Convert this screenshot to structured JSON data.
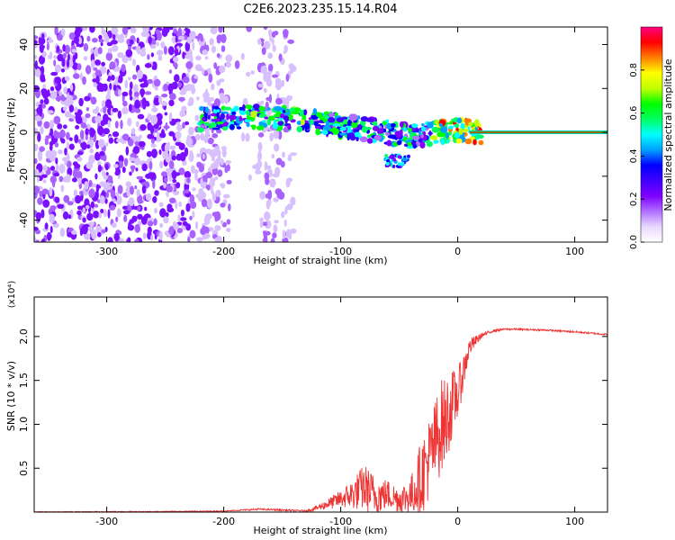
{
  "title": "C2E6.2023.235.15.14.R04",
  "chart_data": [
    {
      "type": "heatmap",
      "xlabel": "Height of straight line (km)",
      "ylabel": "Frequency (Hz)",
      "xlim": [
        -362,
        128
      ],
      "ylim": [
        -50,
        48
      ],
      "x_ticks": [
        -300,
        -200,
        -100,
        0,
        100
      ],
      "y_ticks": [
        -40,
        -20,
        0,
        20,
        40
      ],
      "colorbar": {
        "label": "Normalized spectral amplitude",
        "range": [
          0.0,
          1.0
        ],
        "ticks": [
          0.0,
          0.2,
          0.4,
          0.6,
          0.8
        ],
        "colormap": [
          "#ffffff",
          "#e8d8ff",
          "#b070ff",
          "#8000ff",
          "#4000ff",
          "#0000ff",
          "#00a0ff",
          "#00ffff",
          "#00ff60",
          "#00ff00",
          "#c0ff00",
          "#ffff00",
          "#ff8000",
          "#ff0000",
          "#ff0080"
        ]
      },
      "features": {
        "noise_region_x": [
          -362,
          -140
        ],
        "signal_track": {
          "x": [
            -220,
            -180,
            -140,
            -100,
            -60,
            -40,
            -20,
            0,
            20,
            128
          ],
          "freq": [
            6,
            7,
            6,
            3,
            0,
            -2,
            0,
            1,
            0,
            0
          ]
        },
        "steady_line_x": [
          10,
          128
        ],
        "steady_line_freq": 0
      }
    },
    {
      "type": "line",
      "xlabel": "Height of straight line (km)",
      "ylabel": "SNR (10 * v/v)",
      "y_multiplier": "(x10⁴)",
      "xlim": [
        -362,
        128
      ],
      "ylim": [
        0,
        2.45
      ],
      "x_ticks": [
        -300,
        -200,
        -100,
        0,
        100
      ],
      "y_ticks": [
        0.5,
        1.0,
        1.5,
        2.0
      ],
      "series": [
        {
          "color": "#ee3333",
          "envelope": {
            "x": [
              -362,
              -250,
              -200,
              -170,
              -130,
              -120,
              -100,
              -90,
              -80,
              -70,
              -60,
              -50,
              -40,
              -30,
              -20,
              -15,
              -10,
              -5,
              0,
              5,
              10,
              20,
              30,
              40,
              50,
              75,
              100,
              128
            ],
            "base": [
              0.0,
              0.005,
              0.01,
              0.03,
              0.01,
              0.04,
              0.12,
              0.15,
              0.2,
              0.12,
              0.15,
              0.1,
              0.12,
              0.3,
              0.6,
              0.8,
              0.9,
              1.1,
              1.25,
              1.55,
              1.85,
              2.0,
              2.06,
              2.08,
              2.08,
              2.07,
              2.05,
              2.02
            ],
            "amp": [
              0.01,
              0.01,
              0.01,
              0.02,
              0.02,
              0.06,
              0.2,
              0.35,
              0.55,
              0.45,
              0.35,
              0.3,
              0.45,
              0.9,
              1.0,
              1.1,
              1.0,
              0.8,
              0.6,
              0.4,
              0.2,
              0.06,
              0.03,
              0.02,
              0.02,
              0.02,
              0.02,
              0.02
            ]
          }
        }
      ]
    }
  ]
}
